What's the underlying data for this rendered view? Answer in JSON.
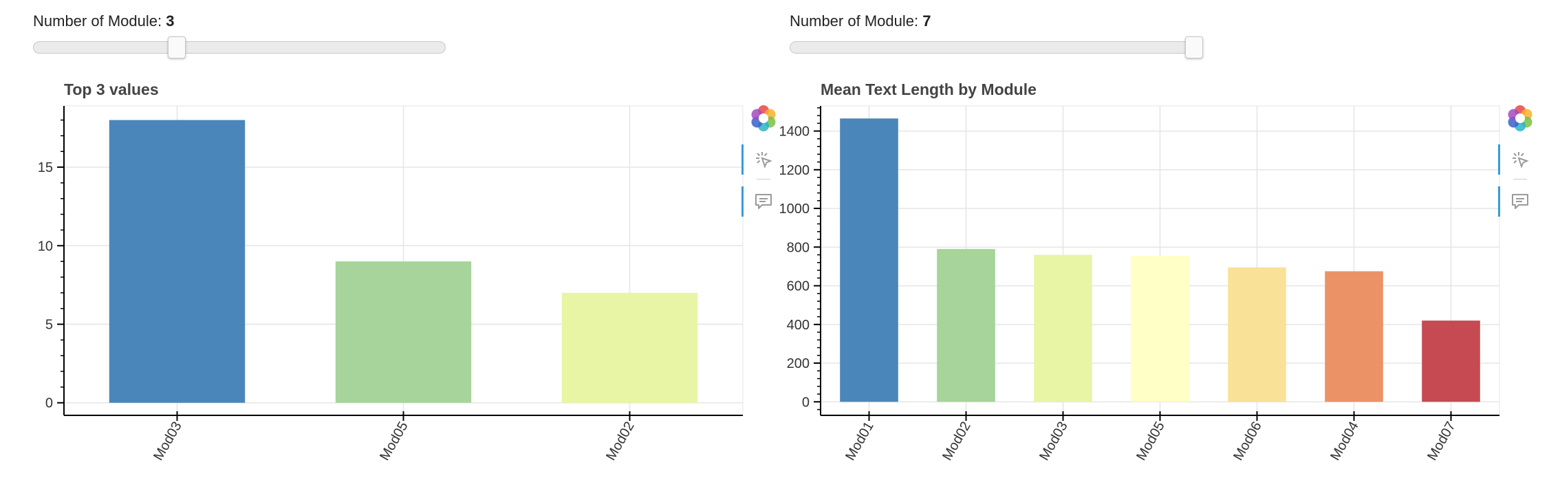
{
  "sliders": [
    {
      "label": "Number of Module: ",
      "value": "3",
      "level": 0.34
    },
    {
      "label": "Number of Module: ",
      "value": "7",
      "level": 1.0
    }
  ],
  "colors": {
    "palette": [
      "#4a86b9",
      "#a6d49a",
      "#e8f5a4",
      "#ffffc6",
      "#f9e197",
      "#ec9267",
      "#c64a52"
    ],
    "grid": "#e5e5e5",
    "axis": "#000000",
    "toolbar_active": "#3a9ad9"
  },
  "toolbar": {
    "icons": [
      "bokeh-logo-icon",
      "hover-tool-icon",
      "tooltip-icon"
    ]
  },
  "chart_data": [
    {
      "type": "bar",
      "title": "Top 3 values",
      "categories": [
        "Mod03",
        "Mod05",
        "Mod02"
      ],
      "values": [
        18,
        9,
        7
      ],
      "ylim": [
        -0.8,
        18.9
      ],
      "yticks": [
        0,
        5,
        10,
        15
      ],
      "grid": true,
      "xlabel": "",
      "ylabel": ""
    },
    {
      "type": "bar",
      "title": "Mean Text Length by Module",
      "categories": [
        "Mod01",
        "Mod02",
        "Mod03",
        "Mod05",
        "Mod06",
        "Mod04",
        "Mod07"
      ],
      "values": [
        1465,
        790,
        760,
        755,
        695,
        675,
        420
      ],
      "ylim": [
        -70,
        1530
      ],
      "yticks": [
        0,
        200,
        400,
        600,
        800,
        1000,
        1200,
        1400
      ],
      "grid": true,
      "xlabel": "",
      "ylabel": ""
    }
  ]
}
